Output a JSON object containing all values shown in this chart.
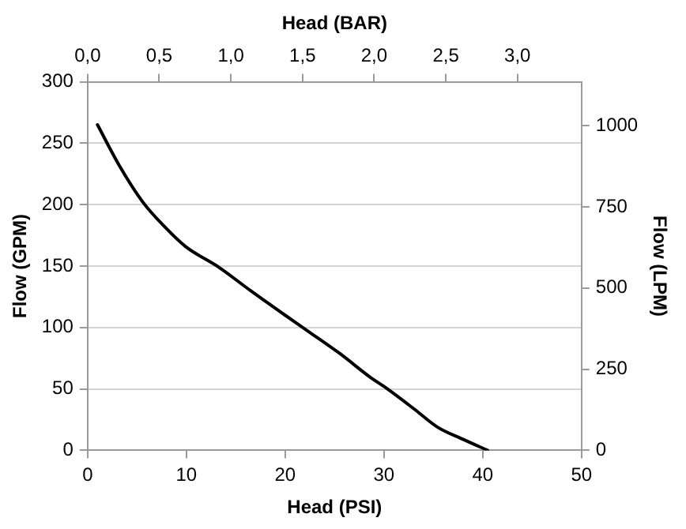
{
  "chart_data": {
    "type": "line",
    "xlabel": "Head (PSI)",
    "ylabel": "Flow (GPM)",
    "y2label": "Flow (LPM)",
    "x2label": "Head (BAR)",
    "series": [
      {
        "color": "#000000",
        "x": [
          1.0,
          3.2,
          5.6,
          7.8,
          9.9,
          13.3,
          16.5,
          20,
          22.5,
          25.5,
          28.7,
          30,
          33,
          35.4,
          38,
          40.5
        ],
        "values": [
          265,
          232,
          202,
          182,
          166,
          149,
          130,
          110,
          96,
          79,
          59,
          52,
          34,
          19,
          9,
          0
        ]
      }
    ],
    "xlim": [
      0,
      50
    ],
    "xticks": [
      0,
      10,
      20,
      30,
      40,
      50
    ],
    "ylim": [
      0,
      300
    ],
    "yticks": [
      0,
      50,
      100,
      150,
      200,
      250,
      300
    ],
    "y2lim": [
      0,
      1135.6
    ],
    "y2ticks": [
      0,
      250,
      500,
      750,
      1000
    ],
    "x2lim": [
      0,
      3.447
    ],
    "x2ticks": [
      {
        "value": 0,
        "label": "0,0"
      },
      {
        "value": 0.5,
        "label": "0,5"
      },
      {
        "value": 1,
        "label": "1,0"
      },
      {
        "value": 1.5,
        "label": "1,5"
      },
      {
        "value": 2,
        "label": "2,0"
      },
      {
        "value": 2.5,
        "label": "2,5"
      },
      {
        "value": 3,
        "label": "3,0"
      }
    ],
    "grid": "y",
    "legend": false,
    "marker": "none",
    "line_style": "solid"
  }
}
